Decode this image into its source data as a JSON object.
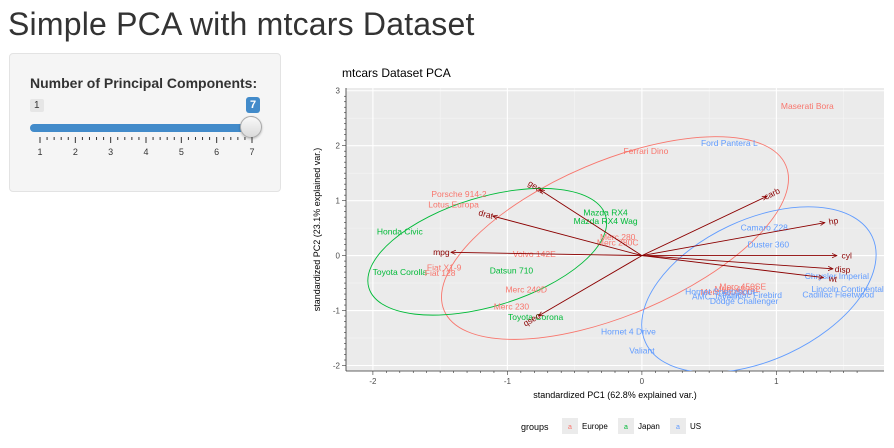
{
  "page": {
    "title": "Simple PCA with mtcars Dataset"
  },
  "slider": {
    "label": "Number of Principal Components:",
    "min": 1,
    "max": 7,
    "value": 7,
    "min_text": "1",
    "value_text": "7",
    "ticks": [
      "1",
      "2",
      "3",
      "4",
      "5",
      "6",
      "7"
    ]
  },
  "chart_data": {
    "type": "scatter",
    "title": "mtcars Dataset PCA",
    "xlabel": "standardized PC1 (62.8% explained var.)",
    "ylabel": "standardized PC2 (23.1% explained var.)",
    "xlim": [
      -2.2,
      1.8
    ],
    "ylim": [
      -2.1,
      3.05
    ],
    "xticks": [
      -2,
      -1,
      0,
      1
    ],
    "yticks": [
      -2,
      -1,
      0,
      1,
      2,
      3
    ],
    "legend": {
      "title": "groups",
      "position": "bottom",
      "entries": [
        "Europe",
        "Japan",
        "US"
      ]
    },
    "colors": {
      "Europe": "#F8766D",
      "Japan": "#00BA38",
      "US": "#619CFF",
      "arrow": "#8B0000"
    },
    "points": [
      {
        "label": "Maserati Bora",
        "group": "Europe",
        "x": 1.23,
        "y": 2.72
      },
      {
        "label": "Ford Pantera L",
        "group": "US",
        "x": 0.65,
        "y": 2.05
      },
      {
        "label": "Ferrari Dino",
        "group": "Europe",
        "x": 0.03,
        "y": 1.9
      },
      {
        "label": "Porsche 914-2",
        "group": "Europe",
        "x": -1.36,
        "y": 1.12
      },
      {
        "label": "Lotus Europa",
        "group": "Europe",
        "x": -1.4,
        "y": 0.93
      },
      {
        "label": "Mazda RX4",
        "group": "Japan",
        "x": -0.27,
        "y": 0.78
      },
      {
        "label": "Mazda RX4 Wag",
        "group": "Japan",
        "x": -0.27,
        "y": 0.63
      },
      {
        "label": "Merc 280",
        "group": "Europe",
        "x": -0.18,
        "y": 0.34
      },
      {
        "label": "Merc 280C",
        "group": "Europe",
        "x": -0.18,
        "y": 0.24
      },
      {
        "label": "Honda Civic",
        "group": "Japan",
        "x": -1.8,
        "y": 0.44
      },
      {
        "label": "Volvo 142E",
        "group": "Europe",
        "x": -0.8,
        "y": 0.03
      },
      {
        "label": "Fiat X1-9",
        "group": "Europe",
        "x": -1.47,
        "y": -0.22
      },
      {
        "label": "Toyota Corolla",
        "group": "Japan",
        "x": -1.8,
        "y": -0.3
      },
      {
        "label": "Fiat 128",
        "group": "Europe",
        "x": -1.5,
        "y": -0.32
      },
      {
        "label": "Datsun 710",
        "group": "Japan",
        "x": -0.97,
        "y": -0.27
      },
      {
        "label": "Merc 240D",
        "group": "Europe",
        "x": -0.86,
        "y": -0.62
      },
      {
        "label": "Merc 230",
        "group": "Europe",
        "x": -0.97,
        "y": -0.93
      },
      {
        "label": "Toyota Corona",
        "group": "Japan",
        "x": -0.79,
        "y": -1.12
      },
      {
        "label": "Hornet 4 Drive",
        "group": "US",
        "x": -0.1,
        "y": -1.38
      },
      {
        "label": "Valiant",
        "group": "US",
        "x": 0.0,
        "y": -1.73
      },
      {
        "label": "Camaro Z28",
        "group": "US",
        "x": 0.91,
        "y": 0.51
      },
      {
        "label": "Duster 360",
        "group": "US",
        "x": 0.94,
        "y": 0.2
      },
      {
        "label": "Chrysler Imperial",
        "group": "US",
        "x": 1.45,
        "y": -0.37
      },
      {
        "label": "Lincoln Continental",
        "group": "US",
        "x": 1.53,
        "y": -0.61
      },
      {
        "label": "Cadillac Fleetwood",
        "group": "US",
        "x": 1.46,
        "y": -0.71
      },
      {
        "label": "Merc 450SE",
        "group": "Europe",
        "x": 0.75,
        "y": -0.56
      },
      {
        "label": "Merc 450SL",
        "group": "Europe",
        "x": 0.71,
        "y": -0.61
      },
      {
        "label": "Merc 450SLC",
        "group": "Europe",
        "x": 0.63,
        "y": -0.66
      },
      {
        "label": "Hornet Sportabout",
        "group": "US",
        "x": 0.58,
        "y": -0.65
      },
      {
        "label": "Pontiac Firebird",
        "group": "US",
        "x": 0.82,
        "y": -0.72
      },
      {
        "label": "AMC Javelin",
        "group": "US",
        "x": 0.55,
        "y": -0.74
      },
      {
        "label": "Dodge Challenger",
        "group": "US",
        "x": 0.76,
        "y": -0.83
      }
    ],
    "arrows": [
      {
        "label": "carb",
        "x": 0.93,
        "y": 1.08
      },
      {
        "label": "hp",
        "x": 1.36,
        "y": 0.6
      },
      {
        "label": "cyl",
        "x": 1.45,
        "y": 0.0
      },
      {
        "label": "disp",
        "x": 1.42,
        "y": -0.24
      },
      {
        "label": "wt",
        "x": 1.35,
        "y": -0.4
      },
      {
        "label": "qsec",
        "x": -0.77,
        "y": -1.1
      },
      {
        "label": "mpg",
        "x": -1.42,
        "y": 0.06
      },
      {
        "label": "drat",
        "x": -1.11,
        "y": 0.72
      },
      {
        "label": "gear",
        "x": -0.76,
        "y": 1.2
      }
    ],
    "ellipses": [
      {
        "group": "Europe",
        "cx": -0.2,
        "cy": 0.32,
        "rx": 1.38,
        "ry": 1.4,
        "angle": -23
      },
      {
        "group": "Japan",
        "cx": -1.15,
        "cy": 0.07,
        "rx": 0.92,
        "ry": 0.99,
        "angle": -17
      },
      {
        "group": "US",
        "cx": 0.87,
        "cy": -0.62,
        "rx": 0.93,
        "ry": 1.28,
        "angle": -25
      }
    ]
  }
}
